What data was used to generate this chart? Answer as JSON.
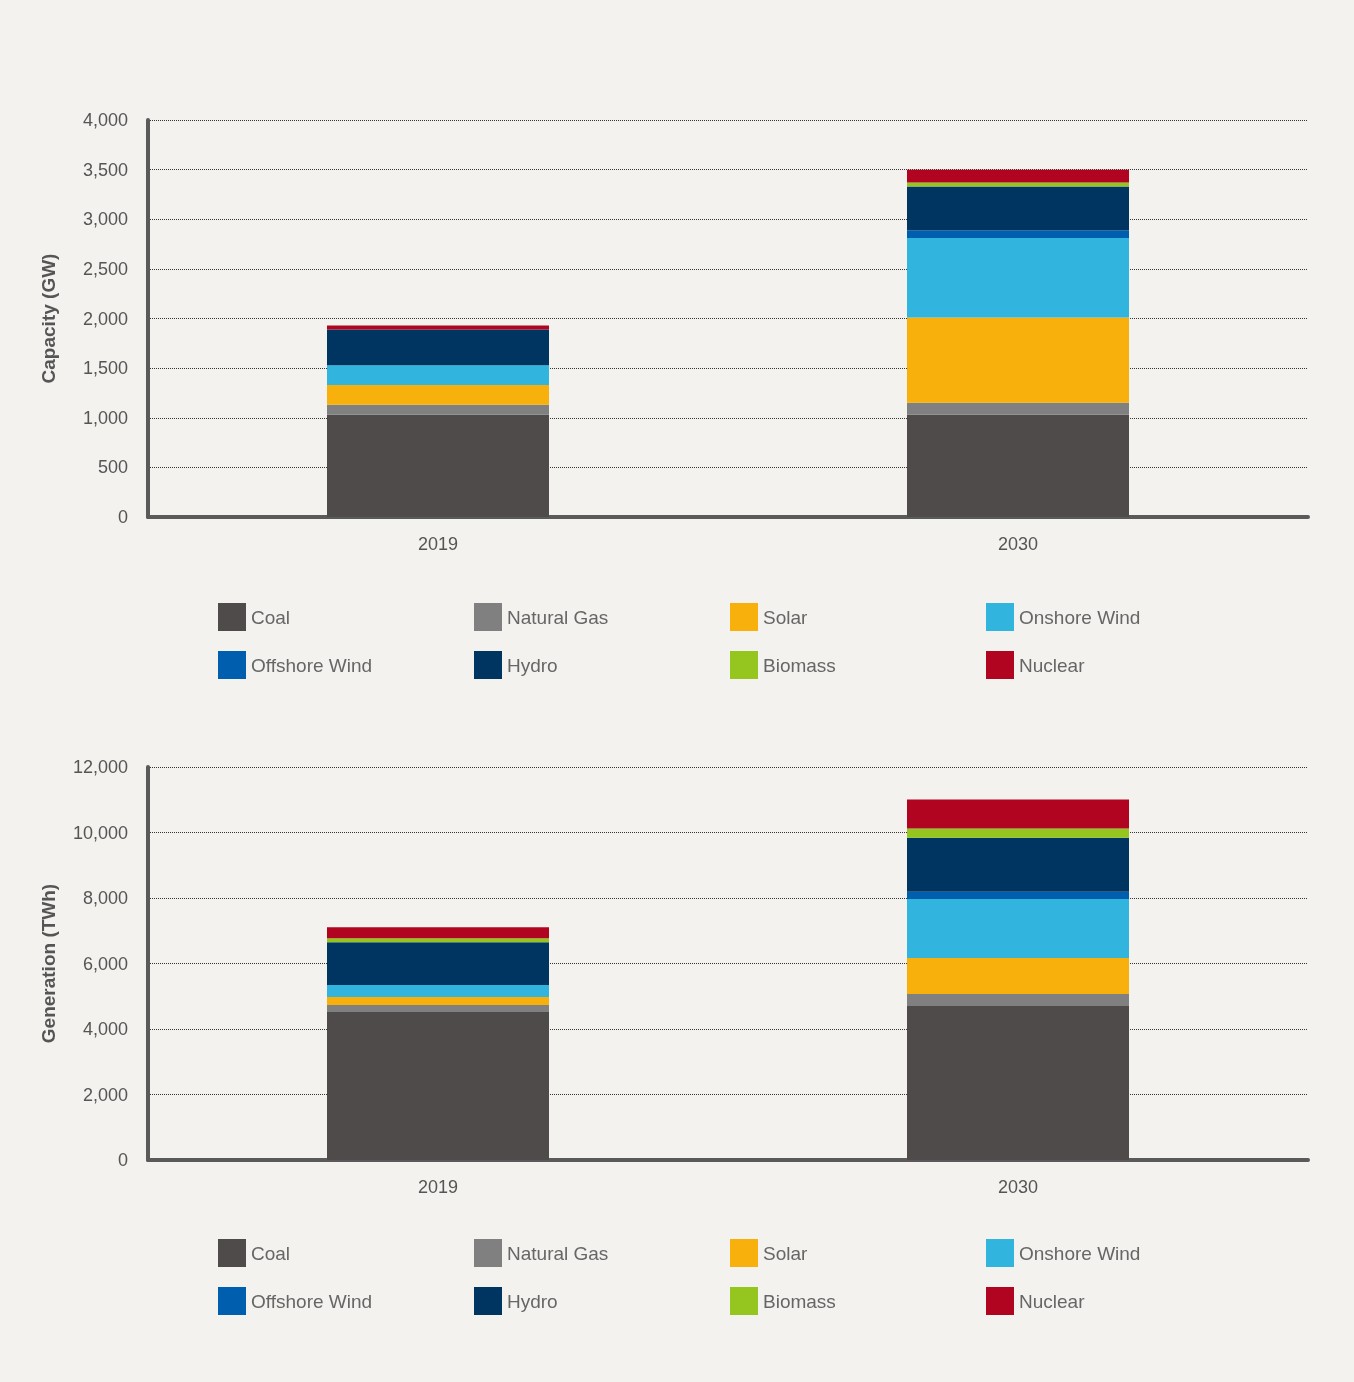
{
  "chart_data": [
    {
      "type": "bar",
      "stacked": true,
      "ylabel": "Capacity (GW)",
      "categories": [
        "2019",
        "2030"
      ],
      "ylim": [
        0,
        4000
      ],
      "yticks": [
        {
          "value": 0,
          "label": "0"
        },
        {
          "value": 500,
          "label": "500"
        },
        {
          "value": 1000,
          "label": "1,000"
        },
        {
          "value": 1500,
          "label": "1,500"
        },
        {
          "value": 2000,
          "label": "2,000"
        },
        {
          "value": 2500,
          "label": "2,500"
        },
        {
          "value": 3000,
          "label": "3,000"
        },
        {
          "value": 3500,
          "label": "3,500"
        },
        {
          "value": 4000,
          "label": "4,000"
        }
      ],
      "grid": "y",
      "legend": "bottom",
      "series": [
        {
          "name": "Coal",
          "color": "#4e4b4a",
          "values": [
            1030,
            1030
          ]
        },
        {
          "name": "Natural Gas",
          "color": "#808080",
          "values": [
            100,
            120
          ]
        },
        {
          "name": "Solar",
          "color": "#f7b00c",
          "values": [
            200,
            860
          ]
        },
        {
          "name": "Onshore Wind",
          "color": "#31b4de",
          "values": [
            200,
            800
          ]
        },
        {
          "name": "Offshore Wind",
          "color": "#005eae",
          "values": [
            0,
            80
          ]
        },
        {
          "name": "Hydro",
          "color": "#003562",
          "values": [
            360,
            440
          ]
        },
        {
          "name": "Biomass",
          "color": "#95c61f",
          "values": [
            0,
            40
          ]
        },
        {
          "name": "Nuclear",
          "color": "#b00420",
          "values": [
            40,
            130
          ]
        }
      ]
    },
    {
      "type": "bar",
      "stacked": true,
      "ylabel": "Generation (TWh)",
      "categories": [
        "2019",
        "2030"
      ],
      "ylim": [
        0,
        12000
      ],
      "yticks": [
        {
          "value": 0,
          "label": "0"
        },
        {
          "value": 2000,
          "label": "2,000"
        },
        {
          "value": 4000,
          "label": "4,000"
        },
        {
          "value": 6000,
          "label": "6,000"
        },
        {
          "value": 8000,
          "label": "8,000"
        },
        {
          "value": 10000,
          "label": "10,000"
        },
        {
          "value": 12000,
          "label": "12,000"
        }
      ],
      "grid": "y",
      "legend": "bottom",
      "series": [
        {
          "name": "Coal",
          "color": "#4e4b4a",
          "values": [
            4520,
            4700
          ]
        },
        {
          "name": "Natural Gas",
          "color": "#808080",
          "values": [
            210,
            370
          ]
        },
        {
          "name": "Solar",
          "color": "#f7b00c",
          "values": [
            250,
            1100
          ]
        },
        {
          "name": "Onshore Wind",
          "color": "#31b4de",
          "values": [
            360,
            1800
          ]
        },
        {
          "name": "Offshore Wind",
          "color": "#005eae",
          "values": [
            0,
            220
          ]
        },
        {
          "name": "Hydro",
          "color": "#003562",
          "values": [
            1310,
            1650
          ]
        },
        {
          "name": "Biomass",
          "color": "#95c61f",
          "values": [
            120,
            280
          ]
        },
        {
          "name": "Nuclear",
          "color": "#b00420",
          "values": [
            340,
            890
          ]
        }
      ]
    }
  ]
}
